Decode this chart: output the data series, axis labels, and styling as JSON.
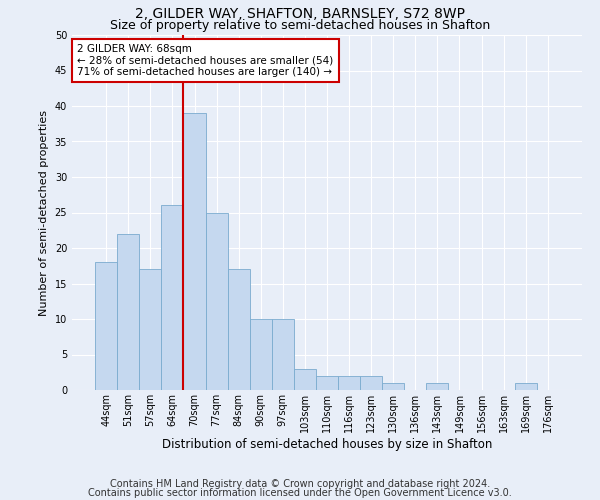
{
  "title1": "2, GILDER WAY, SHAFTON, BARNSLEY, S72 8WP",
  "title2": "Size of property relative to semi-detached houses in Shafton",
  "xlabel": "Distribution of semi-detached houses by size in Shafton",
  "ylabel": "Number of semi-detached properties",
  "categories": [
    "44sqm",
    "51sqm",
    "57sqm",
    "64sqm",
    "70sqm",
    "77sqm",
    "84sqm",
    "90sqm",
    "97sqm",
    "103sqm",
    "110sqm",
    "116sqm",
    "123sqm",
    "130sqm",
    "136sqm",
    "143sqm",
    "149sqm",
    "156sqm",
    "163sqm",
    "169sqm",
    "176sqm"
  ],
  "values": [
    18,
    22,
    17,
    26,
    39,
    25,
    17,
    10,
    10,
    3,
    2,
    2,
    2,
    1,
    0,
    1,
    0,
    0,
    0,
    1,
    0
  ],
  "bar_color": "#c5d8ef",
  "bar_edge_color": "#7aabcf",
  "annotation_text_line1": "2 GILDER WAY: 68sqm",
  "annotation_text_line2": "← 28% of semi-detached houses are smaller (54)",
  "annotation_text_line3": "71% of semi-detached houses are larger (140) →",
  "annotation_box_facecolor": "#ffffff",
  "annotation_box_edgecolor": "#cc0000",
  "redline_x": 3.5,
  "ylim": [
    0,
    50
  ],
  "yticks": [
    0,
    5,
    10,
    15,
    20,
    25,
    30,
    35,
    40,
    45,
    50
  ],
  "footnote1": "Contains HM Land Registry data © Crown copyright and database right 2024.",
  "footnote2": "Contains public sector information licensed under the Open Government Licence v3.0.",
  "background_color": "#e8eef8",
  "plot_bg_color": "#e8eef8",
  "grid_color": "#ffffff",
  "title1_fontsize": 10,
  "title2_fontsize": 9,
  "tick_fontsize": 7,
  "xlabel_fontsize": 8.5,
  "ylabel_fontsize": 8,
  "annotation_fontsize": 7.5,
  "footnote_fontsize": 7
}
